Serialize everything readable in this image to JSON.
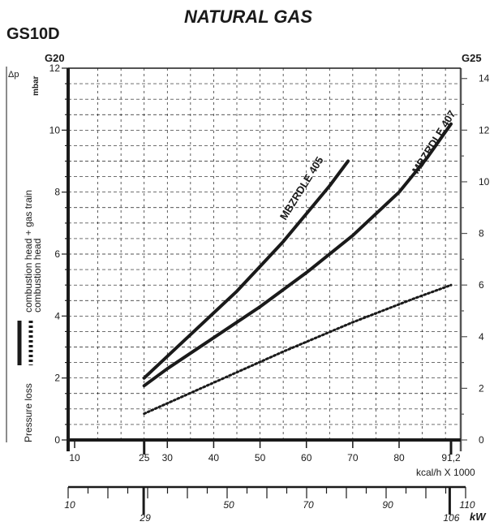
{
  "chart_data": {
    "type": "line",
    "title": "NATURAL GAS",
    "model": "GS10D",
    "y_left": {
      "gas": "G20",
      "unit": "mbar",
      "symbol": "Δp",
      "ylim": [
        0,
        12
      ],
      "ticks": [
        0,
        2,
        4,
        6,
        8,
        10,
        12
      ]
    },
    "y_right": {
      "gas": "G25",
      "ylim": [
        0,
        14.4
      ],
      "ticks": [
        0,
        2,
        4,
        6,
        8,
        10,
        12,
        14
      ]
    },
    "x_kcal": {
      "unit": "kcal/h X 1000",
      "xlim": [
        10,
        91.2
      ],
      "tick_labels": [
        "10",
        "25",
        "30",
        "40",
        "50",
        "60",
        "70",
        "80",
        "91,2"
      ],
      "tick_values": [
        10,
        25,
        30,
        40,
        50,
        60,
        70,
        80,
        91.2
      ]
    },
    "x_kw": {
      "unit": "kW",
      "tick_labels": [
        "10",
        "29",
        "50",
        "70",
        "90",
        "106",
        "110"
      ],
      "tick_values": [
        10,
        29,
        50,
        70,
        90,
        106,
        110
      ]
    },
    "ylabel_lines": [
      "Pressure loss",
      "combustion head + gas train",
      "combustion head"
    ],
    "series": [
      {
        "name": "MBZRDLE 405",
        "style": "solid",
        "x": [
          25,
          30,
          35,
          40,
          45,
          50,
          55,
          60,
          65,
          69
        ],
        "y": [
          2.0,
          2.7,
          3.4,
          4.1,
          4.8,
          5.6,
          6.4,
          7.3,
          8.2,
          9.0
        ]
      },
      {
        "name": "MBZRDLE 407",
        "style": "solid",
        "x": [
          25,
          30,
          40,
          50,
          60,
          70,
          80,
          86,
          91.2
        ],
        "y": [
          1.75,
          2.3,
          3.3,
          4.3,
          5.4,
          6.6,
          8.0,
          9.1,
          10.2
        ]
      },
      {
        "name": "",
        "style": "dotted",
        "x": [
          25,
          40,
          55,
          70,
          83,
          91.2
        ],
        "y": [
          0.85,
          1.85,
          2.85,
          3.8,
          4.55,
          5.0
        ]
      }
    ],
    "grid": true,
    "colors": {
      "line": "#1a1a1a",
      "grid": "#1a1a1a"
    }
  }
}
